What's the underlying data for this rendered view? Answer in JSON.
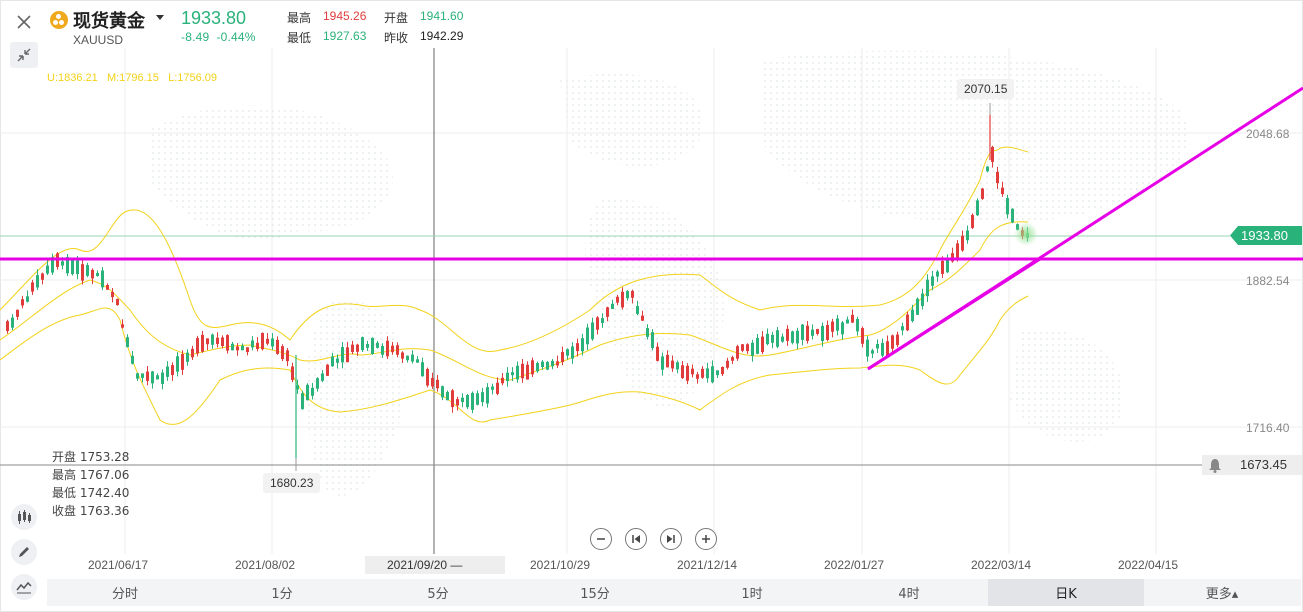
{
  "symbol": {
    "name": "现货黄金",
    "code": "XAUUSD",
    "last_price": "1933.80",
    "change": "-8.49",
    "change_pct": "-0.44%"
  },
  "stats": {
    "high_label": "最高",
    "high": "1945.26",
    "open_label": "开盘",
    "open": "1941.60",
    "low_label": "最低",
    "low": "1927.63",
    "prev_close_label": "昨收",
    "prev_close": "1942.29"
  },
  "bollinger": {
    "upper": "U:1836.21",
    "middle": "M:1796.15",
    "lower": "L:1756.09"
  },
  "ohlc_info": {
    "open": "开盘 1753.28",
    "high": "最高 1767.06",
    "low": "最低 1742.40",
    "close": "收盘 1763.36"
  },
  "price_axis": [
    "2048.68",
    "1882.54",
    "1716.40"
  ],
  "price_tags": {
    "current": "1933.80",
    "alert": "1673.45"
  },
  "annotations": {
    "high_marker": "2070.15",
    "low_marker": "1680.23"
  },
  "date_axis": [
    "2021/06/17",
    "2021/08/02",
    "2021/10/29",
    "2021/12/14",
    "2022/01/27",
    "2022/03/14",
    "2022/04/15"
  ],
  "date_cursor": "2021/09/20 —",
  "tabs": [
    {
      "label": "分时"
    },
    {
      "label": "1分"
    },
    {
      "label": "5分"
    },
    {
      "label": "15分"
    },
    {
      "label": "1时"
    },
    {
      "label": "4时"
    },
    {
      "label": "日K"
    },
    {
      "label": "更多▴"
    }
  ],
  "active_tab": "日K",
  "colors": {
    "up": "#e03c3c",
    "down": "#2ab27b",
    "boll": "#f2d21a",
    "trendline": "#e600e6",
    "price_tag": "#2ab27b"
  }
}
